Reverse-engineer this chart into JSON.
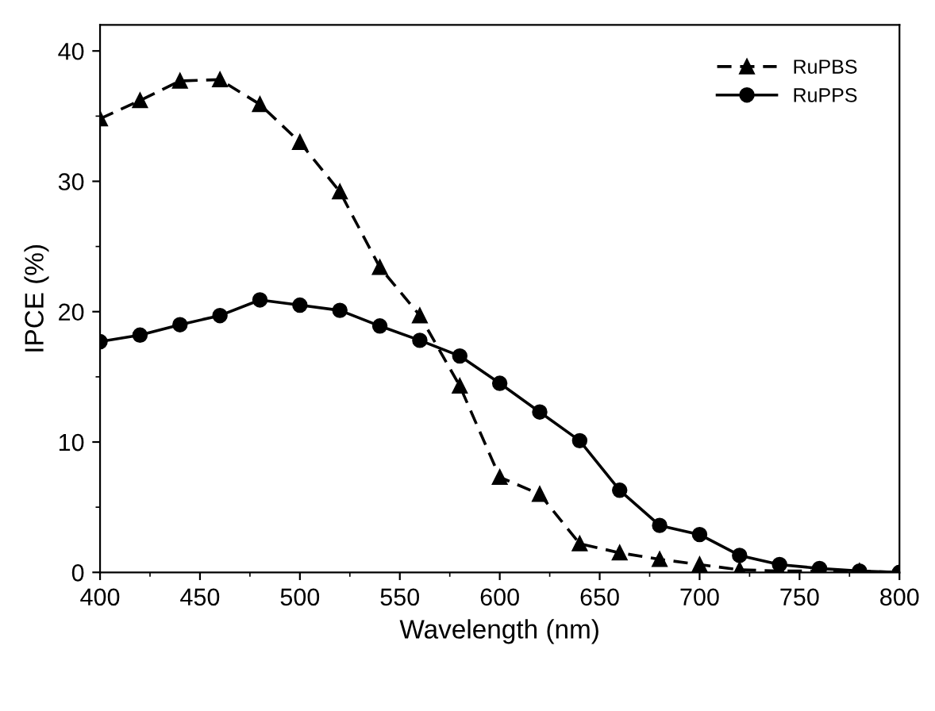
{
  "chart_data": {
    "type": "line",
    "xlabel": "Wavelength (nm)",
    "ylabel": "IPCE (%)",
    "x": [
      400,
      420,
      440,
      460,
      480,
      500,
      520,
      540,
      560,
      580,
      600,
      620,
      640,
      660,
      680,
      700,
      720,
      740,
      760,
      780,
      800
    ],
    "series": [
      {
        "name": "RuPBS",
        "color": "#000000",
        "marker": "triangle",
        "line_style": "dashed",
        "values": [
          34.8,
          36.2,
          37.7,
          37.8,
          35.9,
          33.0,
          29.2,
          23.4,
          19.7,
          14.3,
          7.3,
          6.0,
          2.2,
          1.5,
          1.0,
          0.6,
          0.2,
          0.1,
          0.1,
          0.1,
          0
        ]
      },
      {
        "name": "RuPPS",
        "color": "#000000",
        "marker": "circle",
        "line_style": "solid",
        "values": [
          17.7,
          18.2,
          19.0,
          19.7,
          20.9,
          20.5,
          20.1,
          18.9,
          17.8,
          16.6,
          14.5,
          12.3,
          10.1,
          6.3,
          3.6,
          2.9,
          1.3,
          0.6,
          0.3,
          0.1,
          0
        ]
      }
    ],
    "xlim": [
      400,
      800
    ],
    "ylim": [
      0,
      42
    ],
    "xticks": [
      400,
      450,
      500,
      550,
      600,
      650,
      700,
      750,
      800
    ],
    "yticks": [
      0,
      10,
      20,
      30,
      40
    ],
    "grid": false,
    "legend": "top right"
  }
}
